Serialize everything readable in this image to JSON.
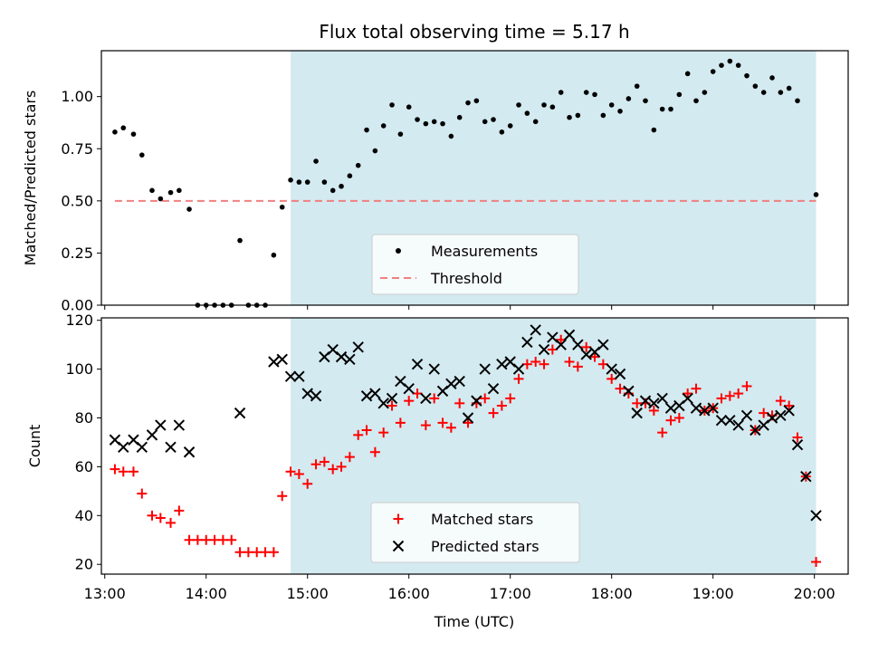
{
  "chart_data": [
    {
      "type": "scatter",
      "title": "Flux total observing time = 5.17 h",
      "xlabel": "",
      "ylabel": "Matched/Predicted stars",
      "ylim": [
        0,
        1.22
      ],
      "yticks": [
        "0.00",
        "0.25",
        "0.50",
        "0.75",
        "1.00"
      ],
      "ytick_values": [
        0,
        0.25,
        0.5,
        0.75,
        1.0
      ],
      "shaded_range": [
        "14:50",
        "20:01"
      ],
      "shade_color": "#d3eaf0",
      "legend": {
        "placement": "lower-center",
        "entries": [
          "Measurements",
          "Threshold"
        ]
      },
      "threshold": {
        "name": "Threshold",
        "value": 0.5,
        "x_start": "13:06",
        "x_end": "20:01",
        "color": "#f08080",
        "style": "dashed"
      },
      "series": [
        {
          "name": "Measurements",
          "marker": "dot",
          "color": "#000000",
          "points": [
            [
              "13:06",
              0.83
            ],
            [
              "13:11",
              0.85
            ],
            [
              "13:17",
              0.82
            ],
            [
              "13:22",
              0.72
            ],
            [
              "13:28",
              0.55
            ],
            [
              "13:33",
              0.51
            ],
            [
              "13:39",
              0.54
            ],
            [
              "13:44",
              0.55
            ],
            [
              "13:50",
              0.46
            ],
            [
              "13:55",
              0.0
            ],
            [
              "14:00",
              0.0
            ],
            [
              "14:05",
              0.0
            ],
            [
              "14:10",
              0.0
            ],
            [
              "14:15",
              0.0
            ],
            [
              "14:20",
              0.31
            ],
            [
              "14:25",
              0.0
            ],
            [
              "14:30",
              0.0
            ],
            [
              "14:35",
              0.0
            ],
            [
              "14:40",
              0.24
            ],
            [
              "14:45",
              0.47
            ],
            [
              "14:50",
              0.6
            ],
            [
              "14:55",
              0.59
            ],
            [
              "15:00",
              0.59
            ],
            [
              "15:05",
              0.69
            ],
            [
              "15:10",
              0.59
            ],
            [
              "15:15",
              0.55
            ],
            [
              "15:20",
              0.57
            ],
            [
              "15:25",
              0.62
            ],
            [
              "15:30",
              0.67
            ],
            [
              "15:35",
              0.84
            ],
            [
              "15:40",
              0.74
            ],
            [
              "15:45",
              0.86
            ],
            [
              "15:50",
              0.96
            ],
            [
              "15:55",
              0.82
            ],
            [
              "16:00",
              0.95
            ],
            [
              "16:05",
              0.89
            ],
            [
              "16:10",
              0.87
            ],
            [
              "16:15",
              0.88
            ],
            [
              "16:20",
              0.87
            ],
            [
              "16:25",
              0.81
            ],
            [
              "16:30",
              0.9
            ],
            [
              "16:35",
              0.97
            ],
            [
              "16:40",
              0.98
            ],
            [
              "16:45",
              0.88
            ],
            [
              "16:50",
              0.89
            ],
            [
              "16:55",
              0.83
            ],
            [
              "17:00",
              0.86
            ],
            [
              "17:05",
              0.96
            ],
            [
              "17:10",
              0.92
            ],
            [
              "17:15",
              0.88
            ],
            [
              "17:20",
              0.96
            ],
            [
              "17:25",
              0.95
            ],
            [
              "17:30",
              1.02
            ],
            [
              "17:35",
              0.9
            ],
            [
              "17:40",
              0.91
            ],
            [
              "17:45",
              1.02
            ],
            [
              "17:50",
              1.01
            ],
            [
              "17:55",
              0.91
            ],
            [
              "18:00",
              0.96
            ],
            [
              "18:05",
              0.93
            ],
            [
              "18:10",
              0.99
            ],
            [
              "18:15",
              1.05
            ],
            [
              "18:20",
              0.98
            ],
            [
              "18:25",
              0.84
            ],
            [
              "18:30",
              0.94
            ],
            [
              "18:35",
              0.94
            ],
            [
              "18:40",
              1.01
            ],
            [
              "18:45",
              1.11
            ],
            [
              "18:50",
              0.98
            ],
            [
              "18:55",
              1.02
            ],
            [
              "19:00",
              1.12
            ],
            [
              "19:05",
              1.15
            ],
            [
              "19:10",
              1.17
            ],
            [
              "19:15",
              1.15
            ],
            [
              "19:20",
              1.1
            ],
            [
              "19:25",
              1.05
            ],
            [
              "19:30",
              1.02
            ],
            [
              "19:35",
              1.09
            ],
            [
              "19:40",
              1.02
            ],
            [
              "19:45",
              1.04
            ],
            [
              "19:50",
              0.98
            ],
            [
              "20:01",
              0.53
            ]
          ]
        }
      ]
    },
    {
      "type": "scatter",
      "title": "",
      "xlabel": "Time (UTC)",
      "ylabel": "Count",
      "ylim": [
        16,
        121
      ],
      "yticks": [
        "20",
        "40",
        "60",
        "80",
        "100",
        "120"
      ],
      "ytick_values": [
        20,
        40,
        60,
        80,
        100,
        120
      ],
      "xticks": [
        "13:00",
        "14:00",
        "15:00",
        "16:00",
        "17:00",
        "18:00",
        "19:00",
        "20:00"
      ],
      "xlim": [
        "12:58",
        "20:20"
      ],
      "shaded_range": [
        "14:50",
        "20:01"
      ],
      "shade_color": "#d3eaf0",
      "legend": {
        "placement": "lower-center",
        "entries": [
          "Matched stars",
          "Predicted stars"
        ]
      },
      "series": [
        {
          "name": "Matched stars",
          "marker": "plus",
          "color": "#ff0000",
          "points": [
            [
              "13:06",
              59
            ],
            [
              "13:11",
              58
            ],
            [
              "13:17",
              58
            ],
            [
              "13:22",
              49
            ],
            [
              "13:28",
              40
            ],
            [
              "13:33",
              39
            ],
            [
              "13:39",
              37
            ],
            [
              "13:44",
              42
            ],
            [
              "13:50",
              30
            ],
            [
              "13:55",
              30
            ],
            [
              "14:00",
              30
            ],
            [
              "14:05",
              30
            ],
            [
              "14:10",
              30
            ],
            [
              "14:15",
              30
            ],
            [
              "14:20",
              25
            ],
            [
              "14:25",
              25
            ],
            [
              "14:30",
              25
            ],
            [
              "14:35",
              25
            ],
            [
              "14:40",
              25
            ],
            [
              "14:45",
              48
            ],
            [
              "14:50",
              58
            ],
            [
              "14:55",
              57
            ],
            [
              "15:00",
              53
            ],
            [
              "15:05",
              61
            ],
            [
              "15:10",
              62
            ],
            [
              "15:15",
              59
            ],
            [
              "15:20",
              60
            ],
            [
              "15:25",
              64
            ],
            [
              "15:30",
              73
            ],
            [
              "15:35",
              75
            ],
            [
              "15:40",
              66
            ],
            [
              "15:45",
              74
            ],
            [
              "15:50",
              85
            ],
            [
              "15:55",
              78
            ],
            [
              "16:00",
              87
            ],
            [
              "16:05",
              90
            ],
            [
              "16:10",
              77
            ],
            [
              "16:15",
              88
            ],
            [
              "16:20",
              78
            ],
            [
              "16:25",
              76
            ],
            [
              "16:30",
              86
            ],
            [
              "16:35",
              78
            ],
            [
              "16:40",
              86
            ],
            [
              "16:45",
              88
            ],
            [
              "16:50",
              82
            ],
            [
              "16:55",
              85
            ],
            [
              "17:00",
              88
            ],
            [
              "17:05",
              96
            ],
            [
              "17:10",
              102
            ],
            [
              "17:15",
              103
            ],
            [
              "17:20",
              102
            ],
            [
              "17:25",
              108
            ],
            [
              "17:30",
              112
            ],
            [
              "17:35",
              103
            ],
            [
              "17:40",
              101
            ],
            [
              "17:45",
              109
            ],
            [
              "17:50",
              105
            ],
            [
              "17:55",
              102
            ],
            [
              "18:00",
              96
            ],
            [
              "18:05",
              92
            ],
            [
              "18:10",
              90
            ],
            [
              "18:15",
              86
            ],
            [
              "18:20",
              86
            ],
            [
              "18:25",
              83
            ],
            [
              "18:30",
              74
            ],
            [
              "18:35",
              79
            ],
            [
              "18:40",
              80
            ],
            [
              "18:45",
              90
            ],
            [
              "18:50",
              92
            ],
            [
              "18:55",
              83
            ],
            [
              "19:00",
              84
            ],
            [
              "19:05",
              88
            ],
            [
              "19:10",
              89
            ],
            [
              "19:15",
              90
            ],
            [
              "19:20",
              93
            ],
            [
              "19:25",
              75
            ],
            [
              "19:30",
              82
            ],
            [
              "19:35",
              81
            ],
            [
              "19:40",
              87
            ],
            [
              "19:45",
              85
            ],
            [
              "19:50",
              72
            ],
            [
              "19:55",
              56
            ],
            [
              "20:01",
              21
            ]
          ]
        },
        {
          "name": "Predicted stars",
          "marker": "cross",
          "color": "#000000",
          "points": [
            [
              "13:06",
              71
            ],
            [
              "13:11",
              68
            ],
            [
              "13:17",
              71
            ],
            [
              "13:22",
              68
            ],
            [
              "13:28",
              73
            ],
            [
              "13:33",
              77
            ],
            [
              "13:39",
              68
            ],
            [
              "13:44",
              77
            ],
            [
              "13:50",
              66
            ],
            [
              "14:20",
              82
            ],
            [
              "14:40",
              103
            ],
            [
              "14:45",
              104
            ],
            [
              "14:50",
              97
            ],
            [
              "14:55",
              97
            ],
            [
              "15:00",
              90
            ],
            [
              "15:05",
              89
            ],
            [
              "15:10",
              105
            ],
            [
              "15:15",
              108
            ],
            [
              "15:20",
              105
            ],
            [
              "15:25",
              104
            ],
            [
              "15:30",
              109
            ],
            [
              "15:35",
              89
            ],
            [
              "15:40",
              90
            ],
            [
              "15:45",
              86
            ],
            [
              "15:50",
              88
            ],
            [
              "15:55",
              95
            ],
            [
              "16:00",
              92
            ],
            [
              "16:05",
              102
            ],
            [
              "16:10",
              88
            ],
            [
              "16:15",
              100
            ],
            [
              "16:20",
              91
            ],
            [
              "16:25",
              94
            ],
            [
              "16:30",
              95
            ],
            [
              "16:35",
              80
            ],
            [
              "16:40",
              87
            ],
            [
              "16:45",
              100
            ],
            [
              "16:50",
              92
            ],
            [
              "16:55",
              102
            ],
            [
              "17:00",
              103
            ],
            [
              "17:05",
              100
            ],
            [
              "17:10",
              111
            ],
            [
              "17:15",
              116
            ],
            [
              "17:20",
              108
            ],
            [
              "17:25",
              113
            ],
            [
              "17:30",
              110
            ],
            [
              "17:35",
              114
            ],
            [
              "17:40",
              110
            ],
            [
              "17:45",
              106
            ],
            [
              "17:50",
              107
            ],
            [
              "17:55",
              110
            ],
            [
              "18:00",
              100
            ],
            [
              "18:05",
              98
            ],
            [
              "18:10",
              91
            ],
            [
              "18:15",
              82
            ],
            [
              "18:20",
              87
            ],
            [
              "18:25",
              86
            ],
            [
              "18:30",
              88
            ],
            [
              "18:35",
              84
            ],
            [
              "18:40",
              85
            ],
            [
              "18:45",
              88
            ],
            [
              "18:50",
              84
            ],
            [
              "18:55",
              83
            ],
            [
              "19:00",
              84
            ],
            [
              "19:05",
              79
            ],
            [
              "19:10",
              79
            ],
            [
              "19:15",
              77
            ],
            [
              "19:20",
              81
            ],
            [
              "19:25",
              75
            ],
            [
              "19:30",
              77
            ],
            [
              "19:35",
              80
            ],
            [
              "19:40",
              81
            ],
            [
              "19:45",
              83
            ],
            [
              "19:50",
              69
            ],
            [
              "19:55",
              56
            ],
            [
              "20:01",
              40
            ]
          ]
        }
      ]
    }
  ]
}
